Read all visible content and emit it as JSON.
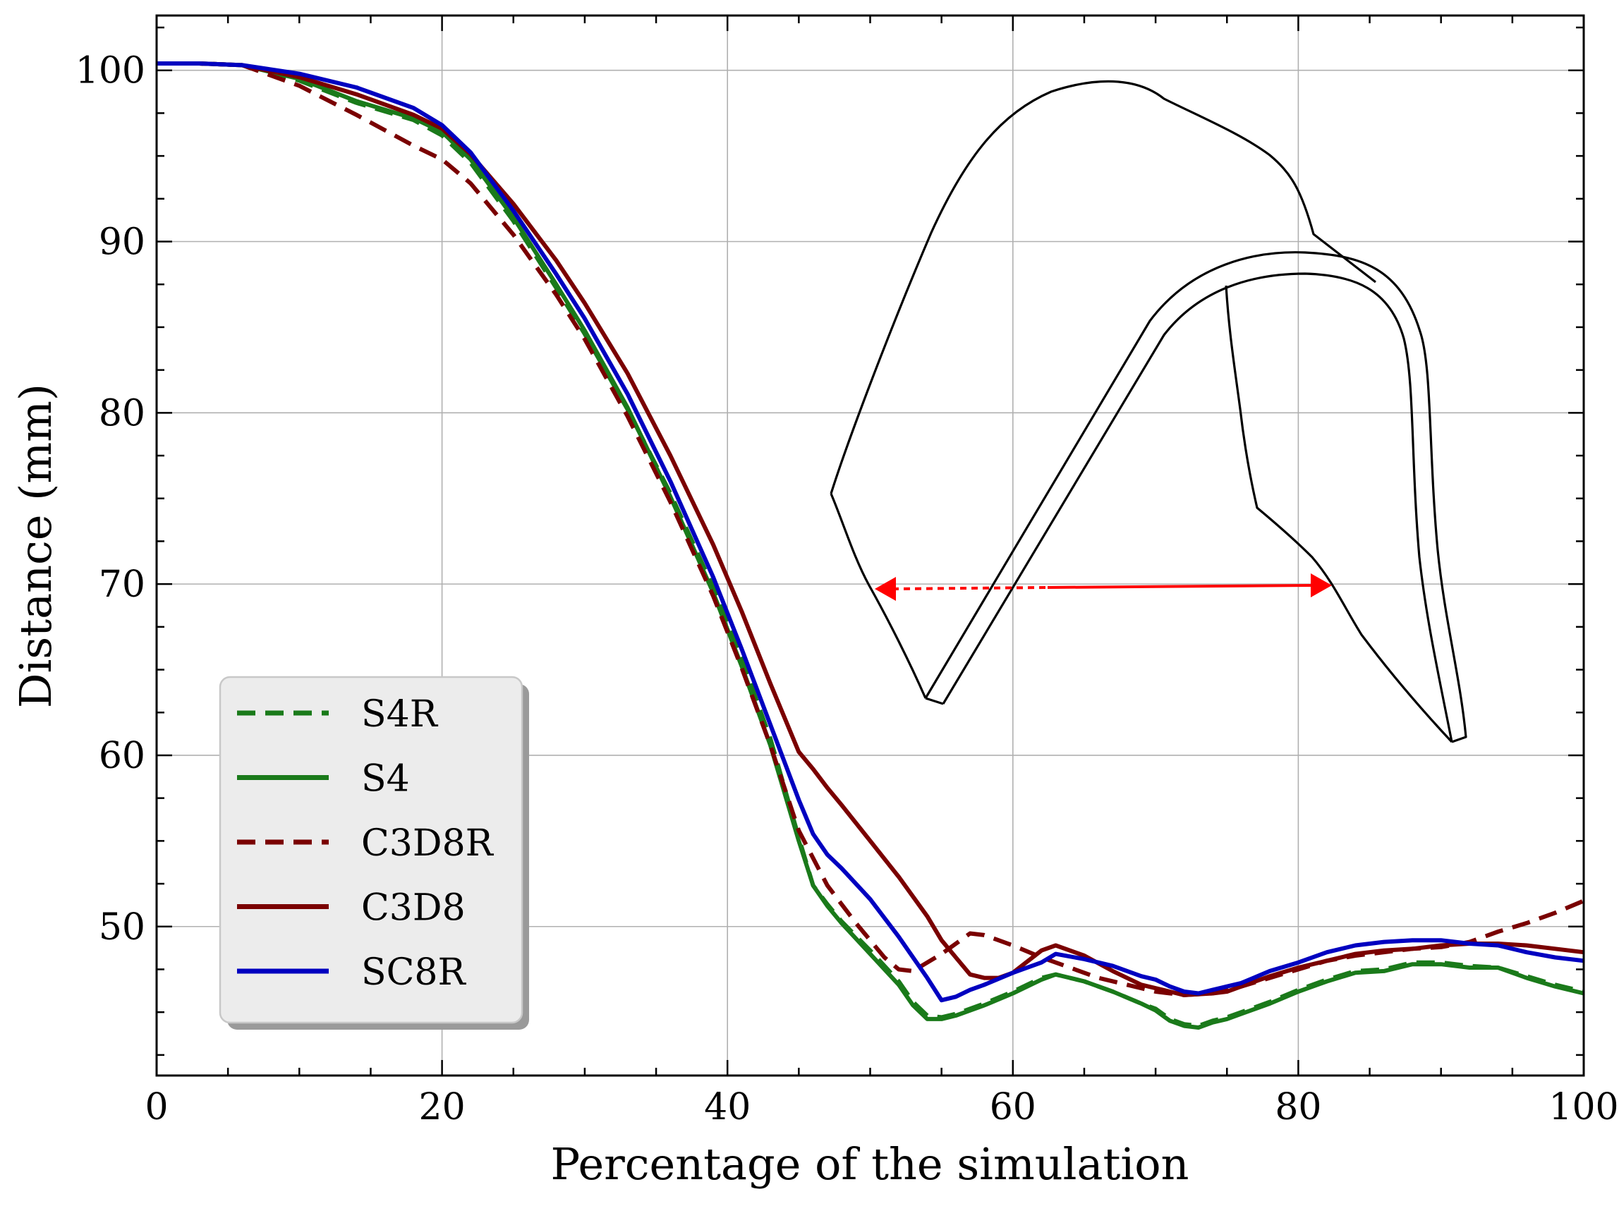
{
  "chart_data": {
    "type": "line",
    "xlabel": "Percentage of the simulation",
    "ylabel": "Distance (mm)",
    "xlim": [
      0,
      100
    ],
    "ylim": [
      41.3,
      103.2
    ],
    "xticks": [
      0,
      20,
      40,
      60,
      80,
      100
    ],
    "yticks": [
      50,
      60,
      70,
      80,
      90,
      100
    ],
    "grid": true,
    "legend_position": "lower-left",
    "series": [
      {
        "name": "S4R",
        "color": "#1a7a1a",
        "dash": "dashed",
        "points": [
          [
            0,
            100.4
          ],
          [
            3,
            100.4
          ],
          [
            6,
            100.3
          ],
          [
            10,
            99.4
          ],
          [
            14,
            98.1
          ],
          [
            18,
            97.1
          ],
          [
            20,
            96.2
          ],
          [
            22,
            94.6
          ],
          [
            25,
            91.2
          ],
          [
            28,
            87.3
          ],
          [
            30,
            84.6
          ],
          [
            33,
            80.2
          ],
          [
            36,
            75.3
          ],
          [
            39,
            69.8
          ],
          [
            41,
            65.6
          ],
          [
            43,
            61.0
          ],
          [
            45,
            55.2
          ],
          [
            46,
            52.4
          ],
          [
            47,
            51.3
          ],
          [
            48,
            50.3
          ],
          [
            50,
            48.6
          ],
          [
            52,
            46.8
          ],
          [
            53,
            45.6
          ],
          [
            54,
            44.8
          ],
          [
            55,
            44.7
          ],
          [
            56,
            44.9
          ],
          [
            58,
            45.5
          ],
          [
            60,
            46.2
          ],
          [
            62,
            47.0
          ],
          [
            63,
            47.2
          ],
          [
            65,
            46.8
          ],
          [
            67,
            46.2
          ],
          [
            69,
            45.5
          ],
          [
            70,
            45.2
          ],
          [
            71,
            44.6
          ],
          [
            72,
            44.3
          ],
          [
            73,
            44.2
          ],
          [
            74,
            44.5
          ],
          [
            75,
            44.7
          ],
          [
            76,
            45.0
          ],
          [
            78,
            45.6
          ],
          [
            80,
            46.3
          ],
          [
            82,
            46.9
          ],
          [
            84,
            47.4
          ],
          [
            86,
            47.5
          ],
          [
            88,
            47.9
          ],
          [
            90,
            47.9
          ],
          [
            92,
            47.7
          ],
          [
            94,
            47.6
          ],
          [
            96,
            47.1
          ],
          [
            98,
            46.6
          ],
          [
            100,
            46.2
          ]
        ]
      },
      {
        "name": "S4",
        "color": "#1a7a1a",
        "dash": "solid",
        "points": [
          [
            0,
            100.4
          ],
          [
            3,
            100.4
          ],
          [
            6,
            100.3
          ],
          [
            10,
            99.5
          ],
          [
            14,
            98.2
          ],
          [
            18,
            97.2
          ],
          [
            20,
            96.4
          ],
          [
            22,
            94.8
          ],
          [
            25,
            91.4
          ],
          [
            28,
            87.5
          ],
          [
            30,
            84.8
          ],
          [
            33,
            80.3
          ],
          [
            36,
            75.1
          ],
          [
            39,
            69.5
          ],
          [
            41,
            65.2
          ],
          [
            43,
            60.6
          ],
          [
            45,
            55.0
          ],
          [
            46,
            52.4
          ],
          [
            47,
            51.2
          ],
          [
            48,
            50.2
          ],
          [
            50,
            48.4
          ],
          [
            52,
            46.6
          ],
          [
            53,
            45.4
          ],
          [
            54,
            44.6
          ],
          [
            55,
            44.6
          ],
          [
            56,
            44.8
          ],
          [
            58,
            45.4
          ],
          [
            60,
            46.1
          ],
          [
            62,
            46.9
          ],
          [
            63,
            47.2
          ],
          [
            65,
            46.8
          ],
          [
            67,
            46.2
          ],
          [
            69,
            45.5
          ],
          [
            70,
            45.1
          ],
          [
            71,
            44.5
          ],
          [
            72,
            44.2
          ],
          [
            73,
            44.1
          ],
          [
            74,
            44.4
          ],
          [
            75,
            44.6
          ],
          [
            76,
            44.9
          ],
          [
            78,
            45.5
          ],
          [
            80,
            46.2
          ],
          [
            82,
            46.8
          ],
          [
            84,
            47.3
          ],
          [
            86,
            47.4
          ],
          [
            88,
            47.8
          ],
          [
            90,
            47.8
          ],
          [
            92,
            47.6
          ],
          [
            94,
            47.6
          ],
          [
            96,
            47.0
          ],
          [
            98,
            46.5
          ],
          [
            100,
            46.1
          ]
        ]
      },
      {
        "name": "C3D8R",
        "color": "#7a0000",
        "dash": "dashed",
        "points": [
          [
            0,
            100.4
          ],
          [
            3,
            100.4
          ],
          [
            6,
            100.3
          ],
          [
            10,
            99.1
          ],
          [
            14,
            97.4
          ],
          [
            18,
            95.6
          ],
          [
            20,
            94.8
          ],
          [
            22,
            93.4
          ],
          [
            25,
            90.4
          ],
          [
            28,
            86.9
          ],
          [
            30,
            84.3
          ],
          [
            33,
            79.8
          ],
          [
            36,
            74.8
          ],
          [
            39,
            69.3
          ],
          [
            41,
            65.1
          ],
          [
            43,
            60.6
          ],
          [
            45,
            55.6
          ],
          [
            47,
            52.4
          ],
          [
            49,
            50.2
          ],
          [
            51,
            48.2
          ],
          [
            52,
            47.5
          ],
          [
            53,
            47.4
          ],
          [
            55,
            48.4
          ],
          [
            57,
            49.6
          ],
          [
            58,
            49.5
          ],
          [
            60,
            48.9
          ],
          [
            62,
            48.2
          ],
          [
            64,
            47.6
          ],
          [
            66,
            47.0
          ],
          [
            68,
            46.6
          ],
          [
            70,
            46.2
          ],
          [
            72,
            46.0
          ],
          [
            74,
            46.1
          ],
          [
            76,
            46.5
          ],
          [
            78,
            47.0
          ],
          [
            80,
            47.5
          ],
          [
            82,
            48.0
          ],
          [
            84,
            48.3
          ],
          [
            86,
            48.5
          ],
          [
            88,
            48.7
          ],
          [
            90,
            48.8
          ],
          [
            92,
            49.1
          ],
          [
            94,
            49.7
          ],
          [
            96,
            50.2
          ],
          [
            98,
            50.8
          ],
          [
            100,
            51.5
          ]
        ]
      },
      {
        "name": "C3D8",
        "color": "#7a0000",
        "dash": "solid",
        "points": [
          [
            0,
            100.4
          ],
          [
            3,
            100.4
          ],
          [
            6,
            100.3
          ],
          [
            10,
            99.6
          ],
          [
            14,
            98.6
          ],
          [
            18,
            97.4
          ],
          [
            20,
            96.6
          ],
          [
            22,
            95.1
          ],
          [
            25,
            92.2
          ],
          [
            28,
            88.9
          ],
          [
            30,
            86.4
          ],
          [
            33,
            82.3
          ],
          [
            36,
            77.5
          ],
          [
            39,
            72.3
          ],
          [
            41,
            68.4
          ],
          [
            43,
            64.2
          ],
          [
            45,
            60.2
          ],
          [
            46,
            59.2
          ],
          [
            47,
            58.1
          ],
          [
            48,
            57.1
          ],
          [
            50,
            55.0
          ],
          [
            52,
            52.9
          ],
          [
            54,
            50.6
          ],
          [
            55,
            49.2
          ],
          [
            56,
            48.2
          ],
          [
            57,
            47.2
          ],
          [
            58,
            47.0
          ],
          [
            59,
            47.0
          ],
          [
            60,
            47.3
          ],
          [
            62,
            48.6
          ],
          [
            63,
            48.9
          ],
          [
            65,
            48.3
          ],
          [
            67,
            47.4
          ],
          [
            69,
            46.6
          ],
          [
            71,
            46.2
          ],
          [
            72,
            46.0
          ],
          [
            74,
            46.1
          ],
          [
            75,
            46.2
          ],
          [
            76,
            46.5
          ],
          [
            78,
            47.1
          ],
          [
            80,
            47.6
          ],
          [
            82,
            48.0
          ],
          [
            84,
            48.4
          ],
          [
            86,
            48.6
          ],
          [
            88,
            48.7
          ],
          [
            90,
            48.9
          ],
          [
            92,
            49.0
          ],
          [
            94,
            49.0
          ],
          [
            96,
            48.9
          ],
          [
            98,
            48.7
          ],
          [
            100,
            48.5
          ]
        ]
      },
      {
        "name": "SC8R",
        "color": "#0000c0",
        "dash": "solid",
        "points": [
          [
            0,
            100.4
          ],
          [
            3,
            100.4
          ],
          [
            6,
            100.3
          ],
          [
            10,
            99.8
          ],
          [
            14,
            99.0
          ],
          [
            18,
            97.8
          ],
          [
            20,
            96.8
          ],
          [
            22,
            95.2
          ],
          [
            25,
            91.8
          ],
          [
            28,
            88.1
          ],
          [
            30,
            85.5
          ],
          [
            33,
            81.1
          ],
          [
            36,
            76.0
          ],
          [
            39,
            70.4
          ],
          [
            41,
            66.2
          ],
          [
            43,
            61.8
          ],
          [
            45,
            57.4
          ],
          [
            46,
            55.4
          ],
          [
            47,
            54.2
          ],
          [
            48,
            53.4
          ],
          [
            50,
            51.6
          ],
          [
            52,
            49.4
          ],
          [
            54,
            47.0
          ],
          [
            55,
            45.7
          ],
          [
            56,
            45.9
          ],
          [
            57,
            46.3
          ],
          [
            58,
            46.6
          ],
          [
            60,
            47.3
          ],
          [
            62,
            47.9
          ],
          [
            63,
            48.4
          ],
          [
            65,
            48.1
          ],
          [
            67,
            47.7
          ],
          [
            69,
            47.1
          ],
          [
            70,
            46.9
          ],
          [
            71,
            46.5
          ],
          [
            72,
            46.2
          ],
          [
            73,
            46.1
          ],
          [
            74,
            46.3
          ],
          [
            75,
            46.5
          ],
          [
            76,
            46.7
          ],
          [
            78,
            47.4
          ],
          [
            80,
            47.9
          ],
          [
            82,
            48.5
          ],
          [
            84,
            48.9
          ],
          [
            86,
            49.1
          ],
          [
            88,
            49.2
          ],
          [
            90,
            49.2
          ],
          [
            92,
            49.0
          ],
          [
            94,
            48.9
          ],
          [
            96,
            48.5
          ],
          [
            98,
            48.2
          ],
          [
            100,
            48.0
          ]
        ]
      }
    ]
  }
}
